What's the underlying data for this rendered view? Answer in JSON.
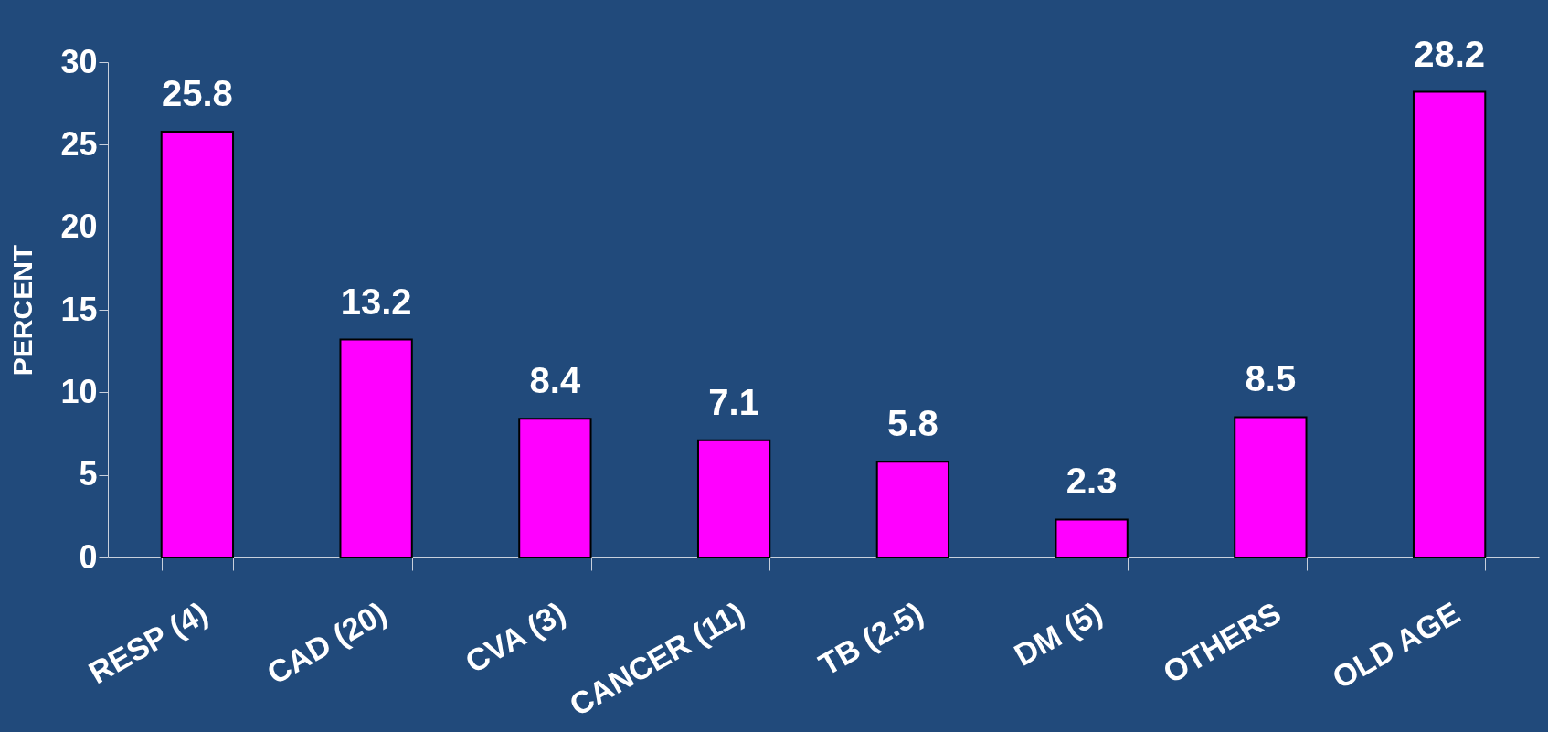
{
  "chart_data": {
    "type": "bar",
    "ylabel": "PERCENT",
    "categories": [
      "RESP (4)",
      "CAD (20)",
      "CVA (3)",
      "CANCER (11)",
      "TB (2.5)",
      "DM (5)",
      "OTHERS",
      "OLD AGE"
    ],
    "values": [
      25.8,
      13.2,
      8.4,
      7.1,
      5.8,
      2.3,
      8.5,
      28.2
    ],
    "color": "#ff00ff",
    "ylim": [
      0,
      30
    ],
    "yticks": [
      0,
      5,
      10,
      15,
      20,
      25,
      30
    ],
    "grid": false,
    "data_labels": true
  }
}
